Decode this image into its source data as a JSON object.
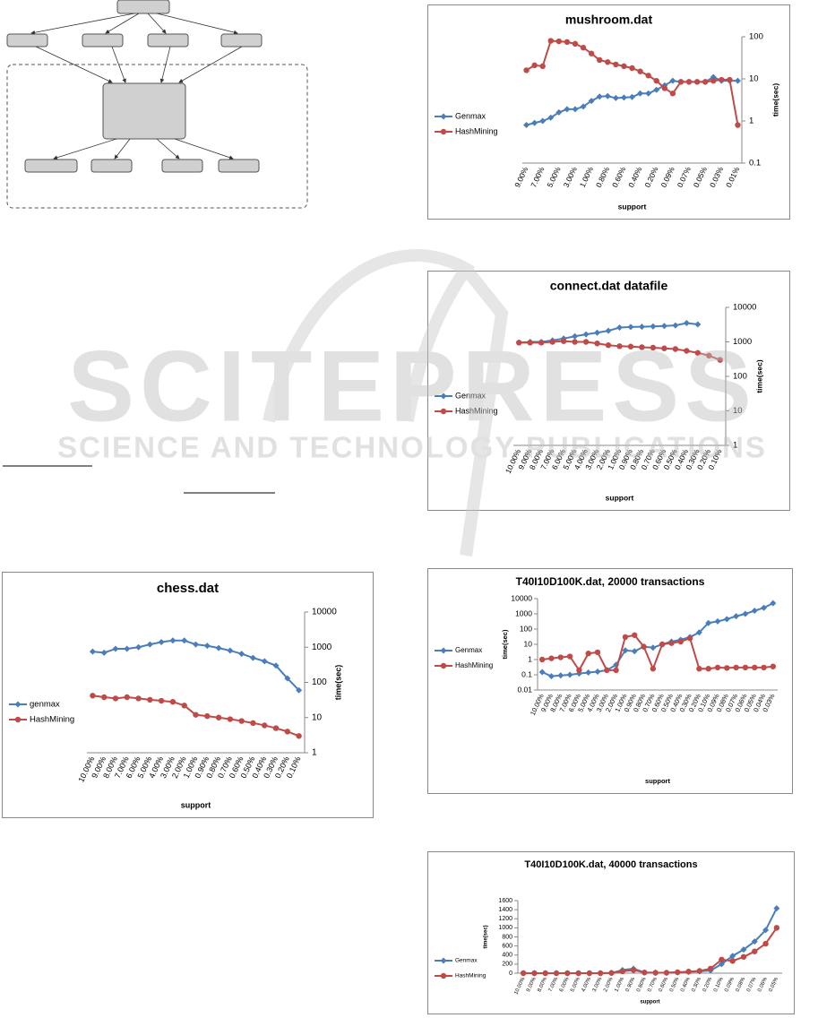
{
  "chart_data": [
    {
      "type": "line",
      "title": "mushroom.dat",
      "x_label": "support",
      "y_label": "time(sec)",
      "log_scale": true,
      "y_axis": "right",
      "legend": "left",
      "categories": [
        "9.00%",
        null,
        "7.00%",
        null,
        "5.00%",
        null,
        "3.00%",
        null,
        "1.00%",
        null,
        "0.80%",
        null,
        "0.60%",
        null,
        "0.40%",
        null,
        "0.20%",
        null,
        "0.09%",
        null,
        "0.07%",
        null,
        "0.05%",
        null,
        "0.03%",
        null,
        "0.01%"
      ],
      "series": [
        {
          "name": "Genmax",
          "color": "#4a7ebb",
          "marker": "diamond",
          "values": [
            0.8,
            0.9,
            1.0,
            1.2,
            1.6,
            1.9,
            1.9,
            2.2,
            3,
            3.8,
            3.9,
            3.5,
            3.6,
            3.7,
            4.5,
            4.5,
            5.5,
            7,
            9,
            8.5,
            8.5,
            8.5,
            8.5,
            11,
            9,
            9,
            9
          ]
        },
        {
          "name": "HashMining",
          "color": "#be4b48",
          "marker": "circle",
          "values": [
            16,
            21,
            20,
            80,
            78,
            75,
            68,
            55,
            40,
            28,
            25,
            22,
            20,
            18,
            15,
            12,
            9,
            6,
            4.5,
            8.5,
            8.5,
            8.5,
            8.5,
            9,
            9.5,
            9.5,
            0.8
          ]
        }
      ],
      "ylim": [
        0.1,
        100
      ],
      "yticks": [
        0.1,
        1,
        10,
        100
      ]
    },
    {
      "type": "line",
      "title": "connect.dat datafile",
      "x_label": "support",
      "y_label": "time(sec)",
      "log_scale": true,
      "y_axis": "right",
      "legend": "left",
      "categories": [
        "10.00%",
        "9.00%",
        "8.00%",
        "7.00%",
        "6.00%",
        "5.00%",
        "4.00%",
        "3.00%",
        "2.00%",
        "1.00%",
        "0.90%",
        "0.80%",
        "0.70%",
        "0.60%",
        "0.50%",
        "0.40%",
        "0.30%",
        "0.20%",
        "0.10%"
      ],
      "series": [
        {
          "name": "Genmax",
          "color": "#4a7ebb",
          "marker": "diamond",
          "values": [
            950,
            1000,
            1000,
            1100,
            1250,
            1450,
            1650,
            1850,
            2100,
            2600,
            2700,
            2750,
            2800,
            2900,
            3000,
            3500,
            3200,
            null,
            null
          ]
        },
        {
          "name": "HashMining",
          "color": "#be4b48",
          "marker": "circle",
          "values": [
            950,
            950,
            950,
            1000,
            1050,
            1000,
            1000,
            900,
            800,
            750,
            730,
            700,
            680,
            650,
            620,
            550,
            480,
            400,
            300
          ]
        }
      ],
      "ylim": [
        1,
        10000
      ],
      "yticks": [
        1,
        10,
        100,
        1000,
        10000
      ]
    },
    {
      "type": "line",
      "title": "chess.dat",
      "x_label": "support",
      "y_label": "time(sec)",
      "log_scale": true,
      "y_axis": "right",
      "legend": "left",
      "categories": [
        "10.00%",
        "9.00%",
        "8.00%",
        "7.00%",
        "6.00%",
        "5.00%",
        "4.00%",
        "3.00%",
        "2.00%",
        "1.00%",
        "0.90%",
        "0.80%",
        "0.70%",
        "0.60%",
        "0.50%",
        "0.40%",
        "0.30%",
        "0.20%",
        "0.10%"
      ],
      "series": [
        {
          "name": "genmax",
          "color": "#4a7ebb",
          "marker": "diamond",
          "values": [
            750,
            700,
            900,
            900,
            1000,
            1200,
            1400,
            1550,
            1550,
            1200,
            1100,
            950,
            800,
            650,
            500,
            400,
            300,
            130,
            60
          ]
        },
        {
          "name": "HashMining",
          "color": "#be4b48",
          "marker": "circle",
          "values": [
            42,
            38,
            35,
            38,
            35,
            32,
            30,
            28,
            22,
            12,
            11,
            10,
            9,
            8,
            7,
            6,
            5,
            4,
            3
          ]
        }
      ],
      "ylim": [
        1,
        10000
      ],
      "yticks": [
        1,
        10,
        100,
        1000,
        10000
      ]
    },
    {
      "type": "line",
      "title": "T40I10D100K.dat, 20000 transactions",
      "x_label": "support",
      "y_label": "time(sec)",
      "log_scale": true,
      "y_axis": "left",
      "legend": "left",
      "categories": [
        "10.00%",
        "9.00%",
        "8.00%",
        "7.00%",
        "6.00%",
        "5.00%",
        "4.00%",
        "3.00%",
        "2.00%",
        "1.00%",
        "0.90%",
        "0.80%",
        "0.70%",
        "0.60%",
        "0.50%",
        "0.40%",
        "0.30%",
        "0.20%",
        "0.10%",
        "0.09%",
        "0.08%",
        "0.07%",
        "0.06%",
        "0.05%",
        "0.04%",
        "0.03%"
      ],
      "series": [
        {
          "name": "Genmax",
          "color": "#4a7ebb",
          "marker": "diamond",
          "values": [
            0.15,
            0.08,
            0.09,
            0.1,
            0.12,
            0.14,
            0.16,
            0.2,
            0.45,
            4,
            3.5,
            7,
            6,
            10,
            15,
            20,
            30,
            60,
            250,
            320,
            450,
            700,
            1000,
            1600,
            2500,
            5000
          ]
        },
        {
          "name": "HashMining",
          "color": "#be4b48",
          "marker": "circle",
          "values": [
            1,
            1.2,
            1.4,
            1.6,
            0.2,
            2.5,
            3,
            0.2,
            0.2,
            30,
            40,
            7,
            0.25,
            10,
            12,
            15,
            25,
            0.25,
            0.25,
            0.3,
            0.28,
            0.3,
            0.3,
            0.3,
            0.3,
            0.35
          ]
        }
      ],
      "ylim": [
        0.01,
        10000
      ],
      "yticks": [
        0.01,
        0.1,
        1,
        10,
        100,
        1000,
        10000
      ]
    },
    {
      "type": "line",
      "title": "T40I10D100K.dat, 40000 transactions",
      "x_label": "support",
      "y_label": "time(sec)",
      "log_scale": false,
      "y_axis": "left",
      "legend": "left",
      "categories": [
        "10.00%",
        "9.00%",
        "8.00%",
        "7.00%",
        "6.00%",
        "5.00%",
        "4.00%",
        "3.00%",
        "2.00%",
        "1.00%",
        "0.90%",
        "0.80%",
        "0.70%",
        "0.60%",
        "0.50%",
        "0.40%",
        "0.30%",
        "0.20%",
        "0.10%",
        "0.09%",
        "0.08%",
        "0.07%",
        "0.06%",
        "0.05%"
      ],
      "series": [
        {
          "name": "Genmax",
          "color": "#4a7ebb",
          "marker": "diamond",
          "values": [
            0,
            0,
            0,
            0,
            0,
            0,
            0,
            0,
            5,
            70,
            100,
            15,
            10,
            10,
            20,
            30,
            40,
            60,
            200,
            380,
            520,
            700,
            950,
            1430
          ]
        },
        {
          "name": "HashMining",
          "color": "#be4b48",
          "marker": "circle",
          "values": [
            0,
            0,
            0,
            0,
            0,
            0,
            0,
            0,
            5,
            40,
            70,
            15,
            10,
            10,
            20,
            35,
            50,
            100,
            300,
            270,
            360,
            480,
            650,
            1000
          ]
        }
      ],
      "ylim": [
        0,
        1600
      ],
      "yticks": [
        0,
        200,
        400,
        600,
        800,
        1000,
        1200,
        1400,
        1600
      ]
    }
  ],
  "watermark": {
    "title": "SCITEPRESS",
    "subtitle": "SCIENCE AND TECHNOLOGY PUBLICATIONS"
  }
}
